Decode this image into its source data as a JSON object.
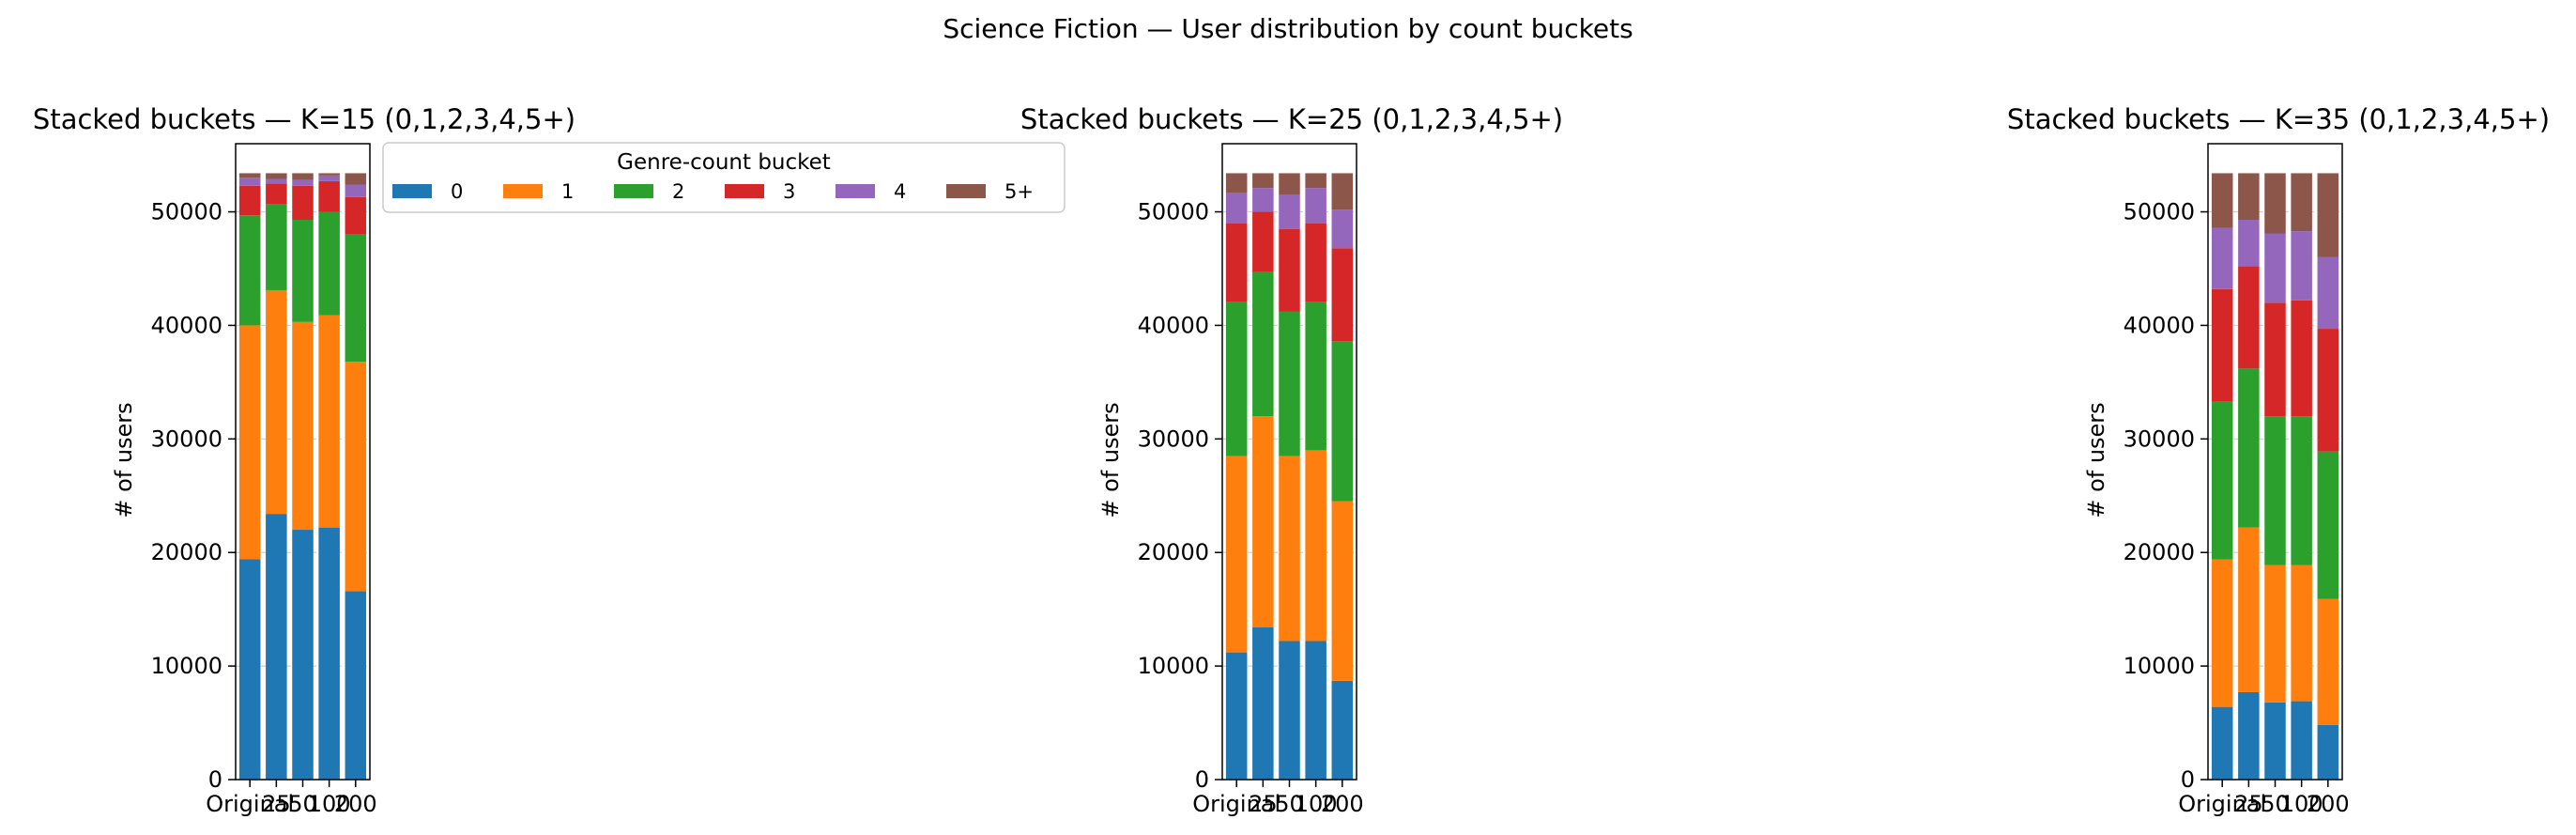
{
  "figure": {
    "title": "Science Fiction — User distribution by count buckets"
  },
  "legend": {
    "title": "Genre-count bucket",
    "entries": [
      "0",
      "1",
      "2",
      "3",
      "4",
      "5+"
    ]
  },
  "colors": {
    "series": [
      "#1f77b4",
      "#ff7f0e",
      "#2ca02c",
      "#d62728",
      "#9467bd",
      "#8c564b"
    ],
    "grid": "#b0b0b0",
    "axis": "#000000"
  },
  "chart_data": [
    {
      "type": "bar",
      "stacked": true,
      "title": "Stacked buckets — K=15  (0,1,2,3,4,5+)",
      "ylabel": "# of users",
      "xlabel": "",
      "ylim": [
        0,
        56000
      ],
      "yticks": [
        0,
        10000,
        20000,
        30000,
        40000,
        50000
      ],
      "ytick_labels": [
        "0",
        "10000",
        "20000",
        "30000",
        "40000",
        "50000"
      ],
      "grid": "y",
      "categories": [
        "Original",
        "25",
        "50",
        "100",
        "200"
      ],
      "series": [
        {
          "name": "0",
          "values": [
            19400,
            23400,
            22000,
            22200,
            16600
          ]
        },
        {
          "name": "1",
          "values": [
            20600,
            19700,
            18300,
            18700,
            20200
          ]
        },
        {
          "name": "2",
          "values": [
            9700,
            7600,
            9000,
            9100,
            11200
          ]
        },
        {
          "name": "3",
          "values": [
            2600,
            1800,
            3000,
            2700,
            3300
          ]
        },
        {
          "name": "4",
          "values": [
            700,
            400,
            500,
            500,
            1100
          ]
        },
        {
          "name": "5+",
          "values": [
            400,
            500,
            600,
            200,
            1000
          ]
        }
      ]
    },
    {
      "type": "bar",
      "stacked": true,
      "title": "Stacked buckets — K=25  (0,1,2,3,4,5+)",
      "ylabel": "# of users",
      "xlabel": "",
      "ylim": [
        0,
        56000
      ],
      "yticks": [
        0,
        10000,
        20000,
        30000,
        40000,
        50000
      ],
      "ytick_labels": [
        "0",
        "10000",
        "20000",
        "30000",
        "40000",
        "50000"
      ],
      "grid": "y",
      "categories": [
        "Original",
        "25",
        "50",
        "100",
        "200"
      ],
      "series": [
        {
          "name": "0",
          "values": [
            11200,
            13400,
            12200,
            12200,
            8700
          ]
        },
        {
          "name": "1",
          "values": [
            17300,
            18600,
            16300,
            16800,
            15800
          ]
        },
        {
          "name": "2",
          "values": [
            13600,
            12700,
            12700,
            13100,
            14100
          ]
        },
        {
          "name": "3",
          "values": [
            6900,
            5300,
            7300,
            6900,
            8200
          ]
        },
        {
          "name": "4",
          "values": [
            2700,
            2100,
            3000,
            3100,
            3400
          ]
        },
        {
          "name": "5+",
          "values": [
            1700,
            1300,
            1900,
            1300,
            3200
          ]
        }
      ]
    },
    {
      "type": "bar",
      "stacked": true,
      "title": "Stacked buckets — K=35  (0,1,2,3,4,5+)",
      "ylabel": "# of users",
      "xlabel": "",
      "ylim": [
        0,
        56000
      ],
      "yticks": [
        0,
        10000,
        20000,
        30000,
        40000,
        50000
      ],
      "ytick_labels": [
        "0",
        "10000",
        "20000",
        "30000",
        "40000",
        "50000"
      ],
      "grid": "y",
      "categories": [
        "Original",
        "25",
        "50",
        "100",
        "200"
      ],
      "series": [
        {
          "name": "0",
          "values": [
            6400,
            7700,
            6800,
            6900,
            4800
          ]
        },
        {
          "name": "1",
          "values": [
            13000,
            14500,
            12100,
            12000,
            11100
          ]
        },
        {
          "name": "2",
          "values": [
            13900,
            14000,
            13100,
            13100,
            13000
          ]
        },
        {
          "name": "3",
          "values": [
            9900,
            9000,
            10000,
            10200,
            10800
          ]
        },
        {
          "name": "4",
          "values": [
            5400,
            4100,
            6100,
            6100,
            6300
          ]
        },
        {
          "name": "5+",
          "values": [
            4800,
            4100,
            5300,
            5100,
            7400
          ]
        }
      ]
    }
  ]
}
